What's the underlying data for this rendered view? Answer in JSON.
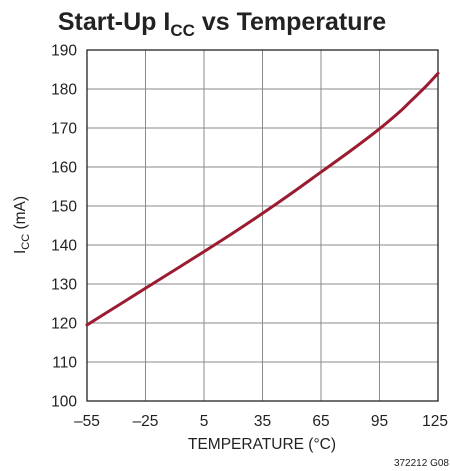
{
  "chart_data": {
    "type": "line",
    "title_main": "Start-Up I",
    "title_sub": "CC",
    "title_rest": " vs Temperature",
    "xlabel": "TEMPERATURE (°C)",
    "ylabel_main": "I",
    "ylabel_sub": "CC",
    "ylabel_rest": " (mA)",
    "xlim": [
      -55,
      125
    ],
    "ylim": [
      100,
      190
    ],
    "x_ticks": [
      -55,
      -25,
      5,
      35,
      65,
      95,
      125
    ],
    "x_tick_labels": [
      "–55",
      "–25",
      "5",
      "35",
      "65",
      "95",
      "125"
    ],
    "y_ticks": [
      100,
      110,
      120,
      130,
      140,
      150,
      160,
      170,
      180,
      190
    ],
    "y_tick_labels": [
      "100",
      "110",
      "120",
      "130",
      "140",
      "150",
      "160",
      "170",
      "180",
      "190"
    ],
    "grid": true,
    "series": [
      {
        "color": "#9b1b30",
        "x": [
          -55,
          -40,
          -25,
          -10,
          5,
          20,
          35,
          50,
          65,
          80,
          95,
          105,
          110,
          115,
          120,
          125
        ],
        "y": [
          119.5,
          124.2,
          128.9,
          133.6,
          138.3,
          143.1,
          148.1,
          153.3,
          158.7,
          164.1,
          169.8,
          174.0,
          176.4,
          178.8,
          181.3,
          184.0
        ]
      }
    ]
  },
  "figure_id": "372212 G08"
}
